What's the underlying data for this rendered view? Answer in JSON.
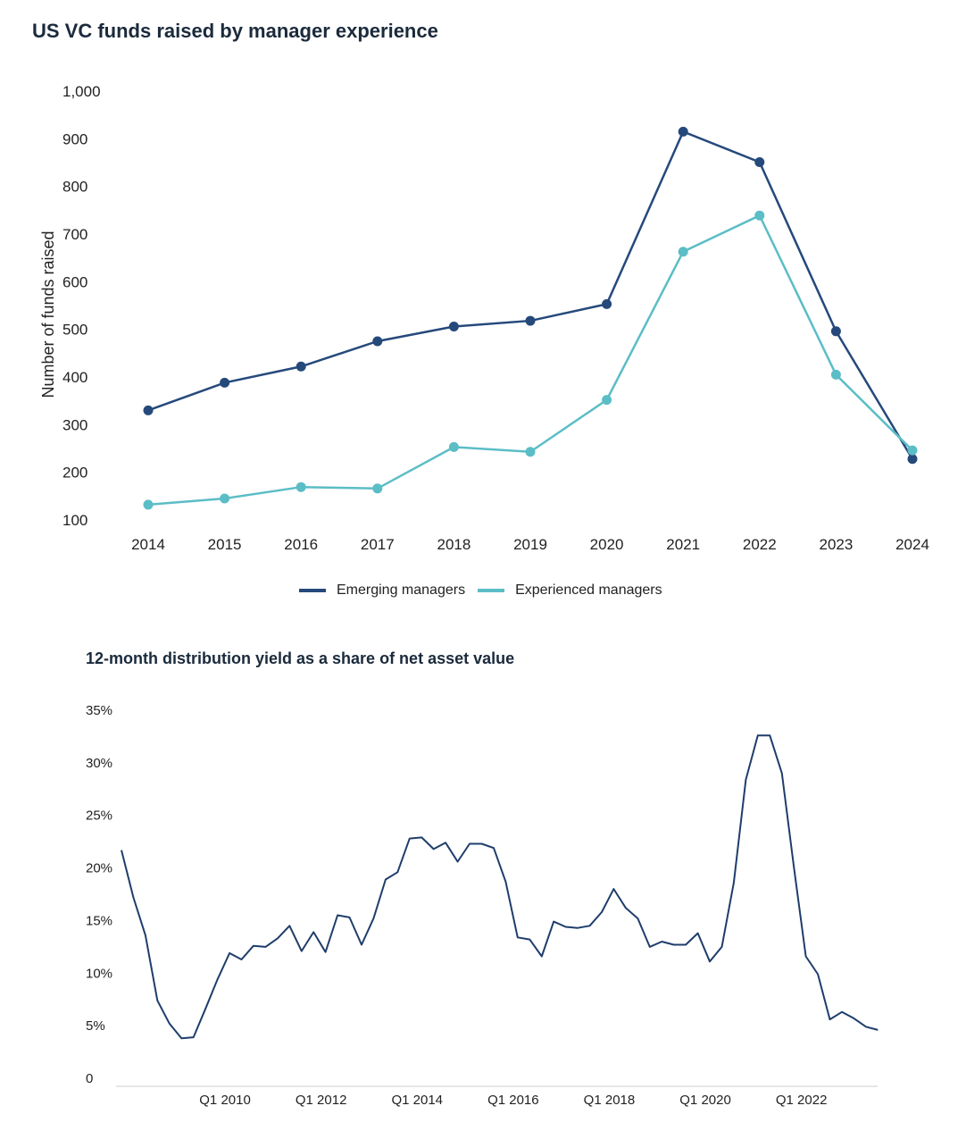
{
  "colors": {
    "emerging": "#25497b",
    "experienced": "#5bbdc6",
    "line2": "#1f3d6b"
  },
  "chart_data": [
    {
      "type": "line",
      "title": "US VC funds raised by manager experience",
      "xlabel": "",
      "ylabel": "Number of funds raised",
      "ylim": [
        100,
        1000
      ],
      "yticks": [
        "100",
        "200",
        "300",
        "400",
        "500",
        "600",
        "700",
        "800",
        "900",
        "1,000"
      ],
      "categories": [
        "2014",
        "2015",
        "2016",
        "2017",
        "2018",
        "2019",
        "2020",
        "2021",
        "2022",
        "2023",
        "2024"
      ],
      "legend_position": "bottom",
      "grid": false,
      "series": [
        {
          "name": "Emerging managers",
          "values": [
            330,
            388,
            422,
            475,
            506,
            518,
            553,
            915,
            851,
            496,
            228
          ]
        },
        {
          "name": "Experienced managers",
          "values": [
            132,
            145,
            169,
            166,
            253,
            243,
            352,
            663,
            739,
            405,
            246
          ]
        }
      ]
    },
    {
      "type": "line",
      "title": "12-month distribution yield as a share of net asset value",
      "xlabel": "",
      "ylabel": "",
      "ylim": [
        0,
        35
      ],
      "yticks": [
        "0",
        "5%",
        "10%",
        "15%",
        "20%",
        "25%",
        "30%",
        "35%"
      ],
      "xticks": [
        "Q1 2010",
        "Q1 2012",
        "Q1 2014",
        "Q1 2016",
        "Q1 2018",
        "Q1 2020",
        "Q1 2022"
      ],
      "x_start": "Q4 2007",
      "grid": false,
      "series": [
        {
          "name": "",
          "values": [
            21.7,
            17.2,
            13.6,
            7.4,
            5.2,
            3.8,
            3.9,
            6.6,
            9.4,
            11.9,
            11.3,
            12.6,
            12.5,
            13.3,
            14.5,
            12.1,
            13.9,
            12.0,
            15.5,
            15.3,
            12.7,
            15.2,
            18.9,
            19.6,
            22.8,
            22.9,
            21.8,
            22.4,
            20.6,
            22.3,
            22.3,
            21.9,
            18.7,
            13.4,
            13.2,
            11.6,
            14.9,
            14.4,
            14.3,
            14.5,
            15.8,
            18.0,
            16.2,
            15.2,
            12.5,
            13.0,
            12.7,
            12.7,
            13.8,
            11.1,
            12.5,
            18.6,
            28.4,
            32.6,
            32.6,
            29.0,
            20.1,
            11.6,
            9.9,
            5.6,
            6.3,
            5.7,
            4.9,
            4.6
          ]
        }
      ]
    }
  ]
}
